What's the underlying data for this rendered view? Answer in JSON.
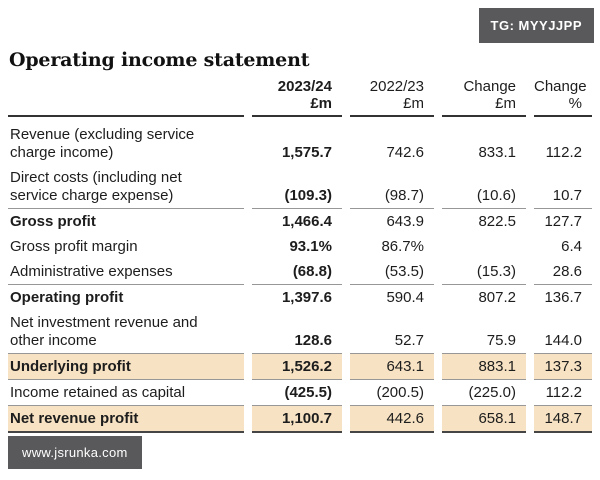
{
  "badge": {
    "label": "TG: MYYJJPP"
  },
  "watermark": {
    "label": "www.jsrunka.com"
  },
  "title": "Operating income statement",
  "colors": {
    "highlight_row_bg": "#f7e3c3",
    "badge_bg": "#59595b",
    "rule_gray": "#979797",
    "rule_dark": "#454545",
    "header_rule": "#323232",
    "text": "#1d1d1d"
  },
  "table": {
    "columns": [
      {
        "line1": "2023/24",
        "line2": "£m"
      },
      {
        "line1": "2022/23",
        "line2": "£m"
      },
      {
        "line1": "Change",
        "line2": "£m"
      },
      {
        "line1": "Change",
        "line2": "%"
      }
    ],
    "rows": [
      {
        "label": "Revenue (excluding service\ncharge income)",
        "values": [
          "1,575.7",
          "742.6",
          "833.1",
          "112.2"
        ],
        "bold": false,
        "highlight": false,
        "rule_below": false,
        "rule_dark": false
      },
      {
        "label": "Direct costs (including net\nservice charge expense)",
        "values": [
          "(109.3)",
          "(98.7)",
          "(10.6)",
          "10.7"
        ],
        "bold": false,
        "highlight": false,
        "rule_below": true,
        "rule_dark": false
      },
      {
        "label": "Gross profit",
        "values": [
          "1,466.4",
          "643.9",
          "822.5",
          "127.7"
        ],
        "bold": true,
        "highlight": false,
        "rule_below": false,
        "rule_dark": false
      },
      {
        "label": "Gross profit margin",
        "values": [
          "93.1%",
          "86.7%",
          "",
          "6.4"
        ],
        "bold": false,
        "highlight": false,
        "rule_below": false,
        "rule_dark": false
      },
      {
        "label": "Administrative expenses",
        "values": [
          "(68.8)",
          "(53.5)",
          "(15.3)",
          "28.6"
        ],
        "bold": false,
        "highlight": false,
        "rule_below": true,
        "rule_dark": false
      },
      {
        "label": "Operating profit",
        "values": [
          "1,397.6",
          "590.4",
          "807.2",
          "136.7"
        ],
        "bold": true,
        "highlight": false,
        "rule_below": false,
        "rule_dark": false
      },
      {
        "label": "Net investment revenue and\nother income",
        "values": [
          "128.6",
          "52.7",
          "75.9",
          "144.0"
        ],
        "bold": false,
        "highlight": false,
        "rule_below": true,
        "rule_dark": false
      },
      {
        "label": "Underlying profit",
        "values": [
          "1,526.2",
          "643.1",
          "883.1",
          "137.3"
        ],
        "bold": true,
        "highlight": true,
        "rule_below": true,
        "rule_dark": false
      },
      {
        "label": "Income retained as capital",
        "values": [
          "(425.5)",
          "(200.5)",
          "(225.0)",
          "112.2"
        ],
        "bold": false,
        "highlight": false,
        "rule_below": true,
        "rule_dark": false
      },
      {
        "label": "Net revenue profit",
        "values": [
          "1,100.7",
          "442.6",
          "658.1",
          "148.7"
        ],
        "bold": true,
        "highlight": true,
        "rule_below": true,
        "rule_dark": true
      }
    ]
  }
}
